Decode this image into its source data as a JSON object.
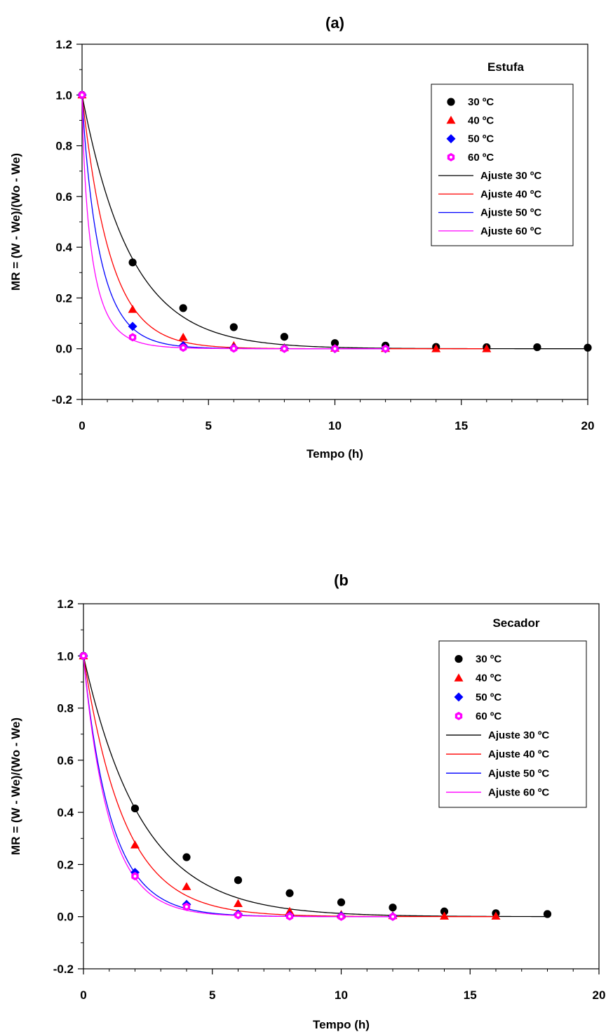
{
  "chart_data": [
    {
      "type": "scatter",
      "title": "(a)",
      "annotation": "Estufa",
      "xlabel": "Tempo (h)",
      "ylabel": "MR = (W - We)/(Wo - We)",
      "xlim": [
        0,
        20
      ],
      "ylim": [
        -0.2,
        1.2
      ],
      "xticks": [
        "0",
        "5",
        "10",
        "15",
        "20"
      ],
      "yticks": [
        "-0.2",
        "0.0",
        "0.2",
        "0.4",
        "0.6",
        "0.8",
        "1.0",
        "1.2"
      ],
      "grid": false,
      "legend_position": "top-right",
      "series": [
        {
          "name": "30 ºC",
          "marker": "circle",
          "color": "#000000",
          "x": [
            0,
            2,
            4,
            6,
            8,
            10,
            12,
            14,
            16,
            18,
            20
          ],
          "y": [
            1.0,
            0.34,
            0.16,
            0.085,
            0.047,
            0.022,
            0.012,
            0.007,
            0.006,
            0.006,
            0.004
          ]
        },
        {
          "name": "40 ºC",
          "marker": "triangle",
          "color": "#ff0000",
          "x": [
            0,
            2,
            4,
            6,
            8,
            10,
            12,
            14,
            16
          ],
          "y": [
            1.0,
            0.155,
            0.045,
            0.012,
            0.004,
            0.002,
            0.001,
            0.0,
            0.0
          ]
        },
        {
          "name": "50 ºC",
          "marker": "diamond",
          "color": "#0000ff",
          "x": [
            0,
            2,
            4,
            6,
            8,
            10,
            12
          ],
          "y": [
            1.0,
            0.088,
            0.012,
            0.003,
            0.001,
            0.0,
            0.0
          ]
        },
        {
          "name": "60 ºC",
          "marker": "hexagon",
          "color": "#ff00ff",
          "x": [
            0,
            2,
            4,
            6,
            8,
            10,
            12
          ],
          "y": [
            1.0,
            0.045,
            0.004,
            0.001,
            0.0,
            0.0,
            0.0
          ]
        },
        {
          "name": "Ajuste 30 ºC",
          "type": "line",
          "color": "#000000",
          "k": 0.52,
          "n": 1.0,
          "xmax": 20
        },
        {
          "name": "Ajuste 40 ºC",
          "type": "line",
          "color": "#ff0000",
          "k": 0.9,
          "n": 1.0,
          "xmax": 16
        },
        {
          "name": "Ajuste 50 ºC",
          "type": "line",
          "color": "#0000ff",
          "k": 1.35,
          "n": 0.9,
          "xmax": 12
        },
        {
          "name": "Ajuste 60 ºC",
          "type": "line",
          "color": "#ff00ff",
          "k": 2.0,
          "n": 0.75,
          "xmax": 12
        }
      ]
    },
    {
      "type": "scatter",
      "title": "(b",
      "annotation": "Secador",
      "xlabel": "Tempo (h)",
      "ylabel": "MR = (W - We)/(Wo - We)",
      "xlim": [
        0,
        20
      ],
      "ylim": [
        -0.2,
        1.2
      ],
      "xticks": [
        "0",
        "5",
        "10",
        "15",
        "20"
      ],
      "yticks": [
        "-0.2",
        "0.0",
        "0.2",
        "0.4",
        "0.6",
        "0.8",
        "1.0",
        "1.2"
      ],
      "grid": false,
      "legend_position": "top-right",
      "series": [
        {
          "name": "30 ºC",
          "marker": "circle",
          "color": "#000000",
          "x": [
            0,
            2,
            4,
            6,
            8,
            10,
            12,
            14,
            16,
            18
          ],
          "y": [
            1.0,
            0.415,
            0.228,
            0.14,
            0.09,
            0.055,
            0.035,
            0.02,
            0.013,
            0.01
          ]
        },
        {
          "name": "40 ºC",
          "marker": "triangle",
          "color": "#ff0000",
          "x": [
            0,
            2,
            4,
            6,
            8,
            10,
            12,
            14,
            16
          ],
          "y": [
            1.0,
            0.275,
            0.115,
            0.05,
            0.02,
            0.008,
            0.004,
            0.002,
            0.002
          ]
        },
        {
          "name": "50 ºC",
          "marker": "diamond",
          "color": "#0000ff",
          "x": [
            0,
            2,
            4,
            6,
            8,
            10,
            12
          ],
          "y": [
            1.0,
            0.17,
            0.047,
            0.01,
            0.004,
            0.003,
            0.001
          ]
        },
        {
          "name": "60 ºC",
          "marker": "hexagon",
          "color": "#ff00ff",
          "x": [
            0,
            2,
            4,
            6,
            8,
            10,
            12
          ],
          "y": [
            1.0,
            0.155,
            0.038,
            0.006,
            0.001,
            0.0,
            0.0
          ]
        },
        {
          "name": "Ajuste 30 ºC",
          "type": "line",
          "color": "#000000",
          "k": 0.44,
          "n": 1.0,
          "xmax": 18
        },
        {
          "name": "Ajuste 40 ºC",
          "type": "line",
          "color": "#ff0000",
          "k": 0.63,
          "n": 1.0,
          "xmax": 16
        },
        {
          "name": "Ajuste 50 ºC",
          "type": "line",
          "color": "#0000ff",
          "k": 0.92,
          "n": 0.96,
          "xmax": 12
        },
        {
          "name": "Ajuste 60 ºC",
          "type": "line",
          "color": "#ff00ff",
          "k": 0.98,
          "n": 0.96,
          "xmax": 12
        }
      ]
    }
  ]
}
